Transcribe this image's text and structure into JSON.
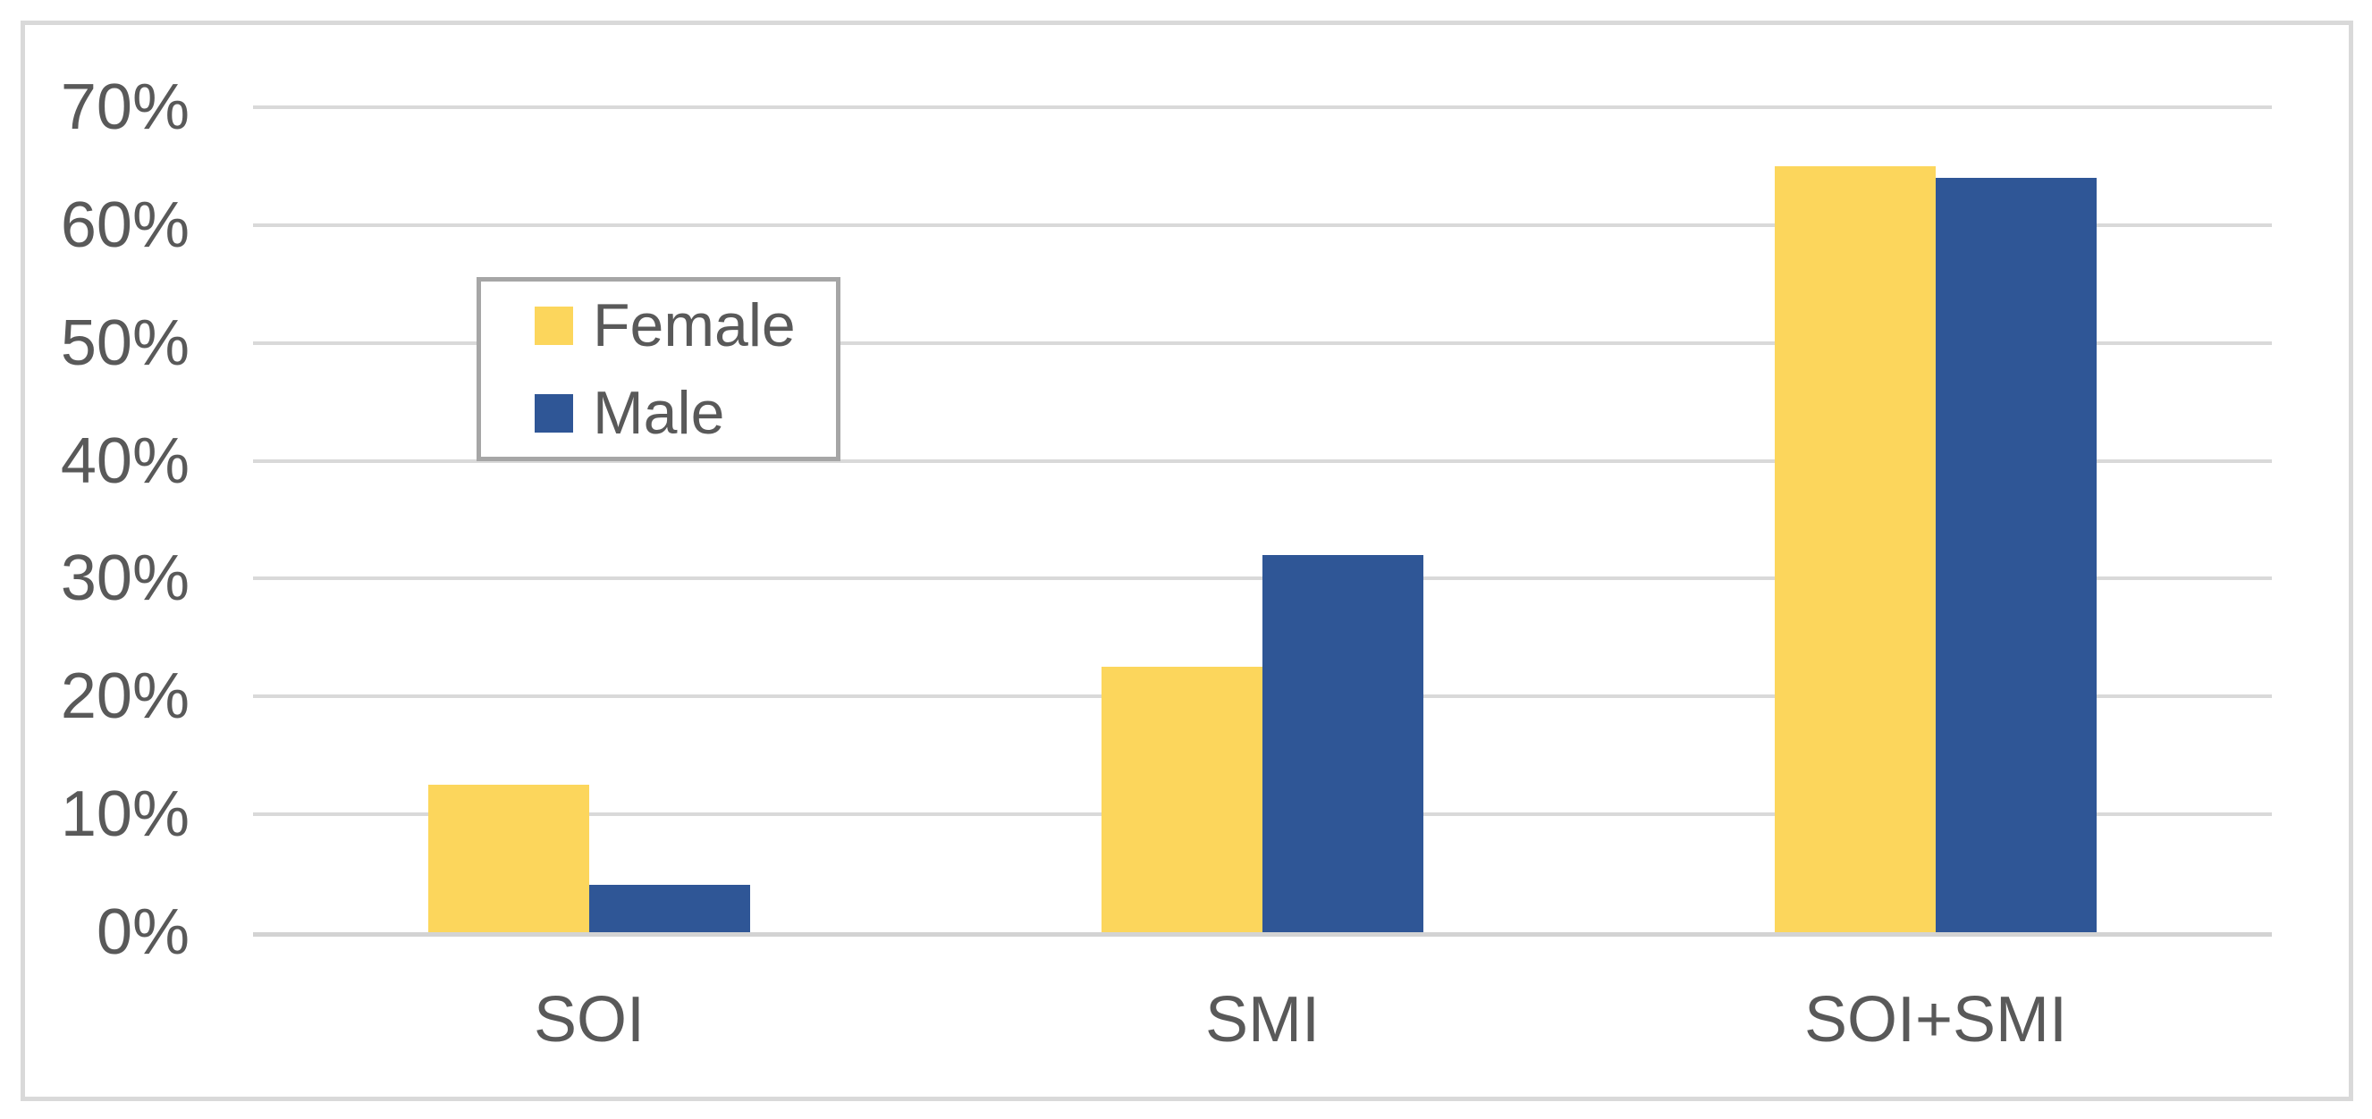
{
  "chart_data": {
    "type": "bar",
    "title": "",
    "xlabel": "",
    "ylabel": "",
    "categories": [
      "SOI",
      "SMI",
      "SOI+SMI"
    ],
    "series": [
      {
        "name": "Female",
        "color": "#FCD65C",
        "values": [
          12.5,
          22.5,
          65
        ]
      },
      {
        "name": "Male",
        "color": "#2F5696",
        "values": [
          4,
          32,
          64
        ]
      }
    ],
    "ylim": [
      0,
      70
    ],
    "ytick_interval": 10,
    "ytick_labels": [
      "0%",
      "10%",
      "20%",
      "30%",
      "40%",
      "50%",
      "60%",
      "70%"
    ],
    "grid": true,
    "legend_position": "inside-upper-left"
  },
  "colors": {
    "female_bar": "#FCD65C",
    "male_bar": "#2F5696",
    "gridline": "#D9D9D9",
    "axis_line": "#D3D3D3",
    "chart_border": "#D9D9D9",
    "legend_border": "#A6A6A6",
    "text": "#595959",
    "background": "#FFFFFF"
  }
}
